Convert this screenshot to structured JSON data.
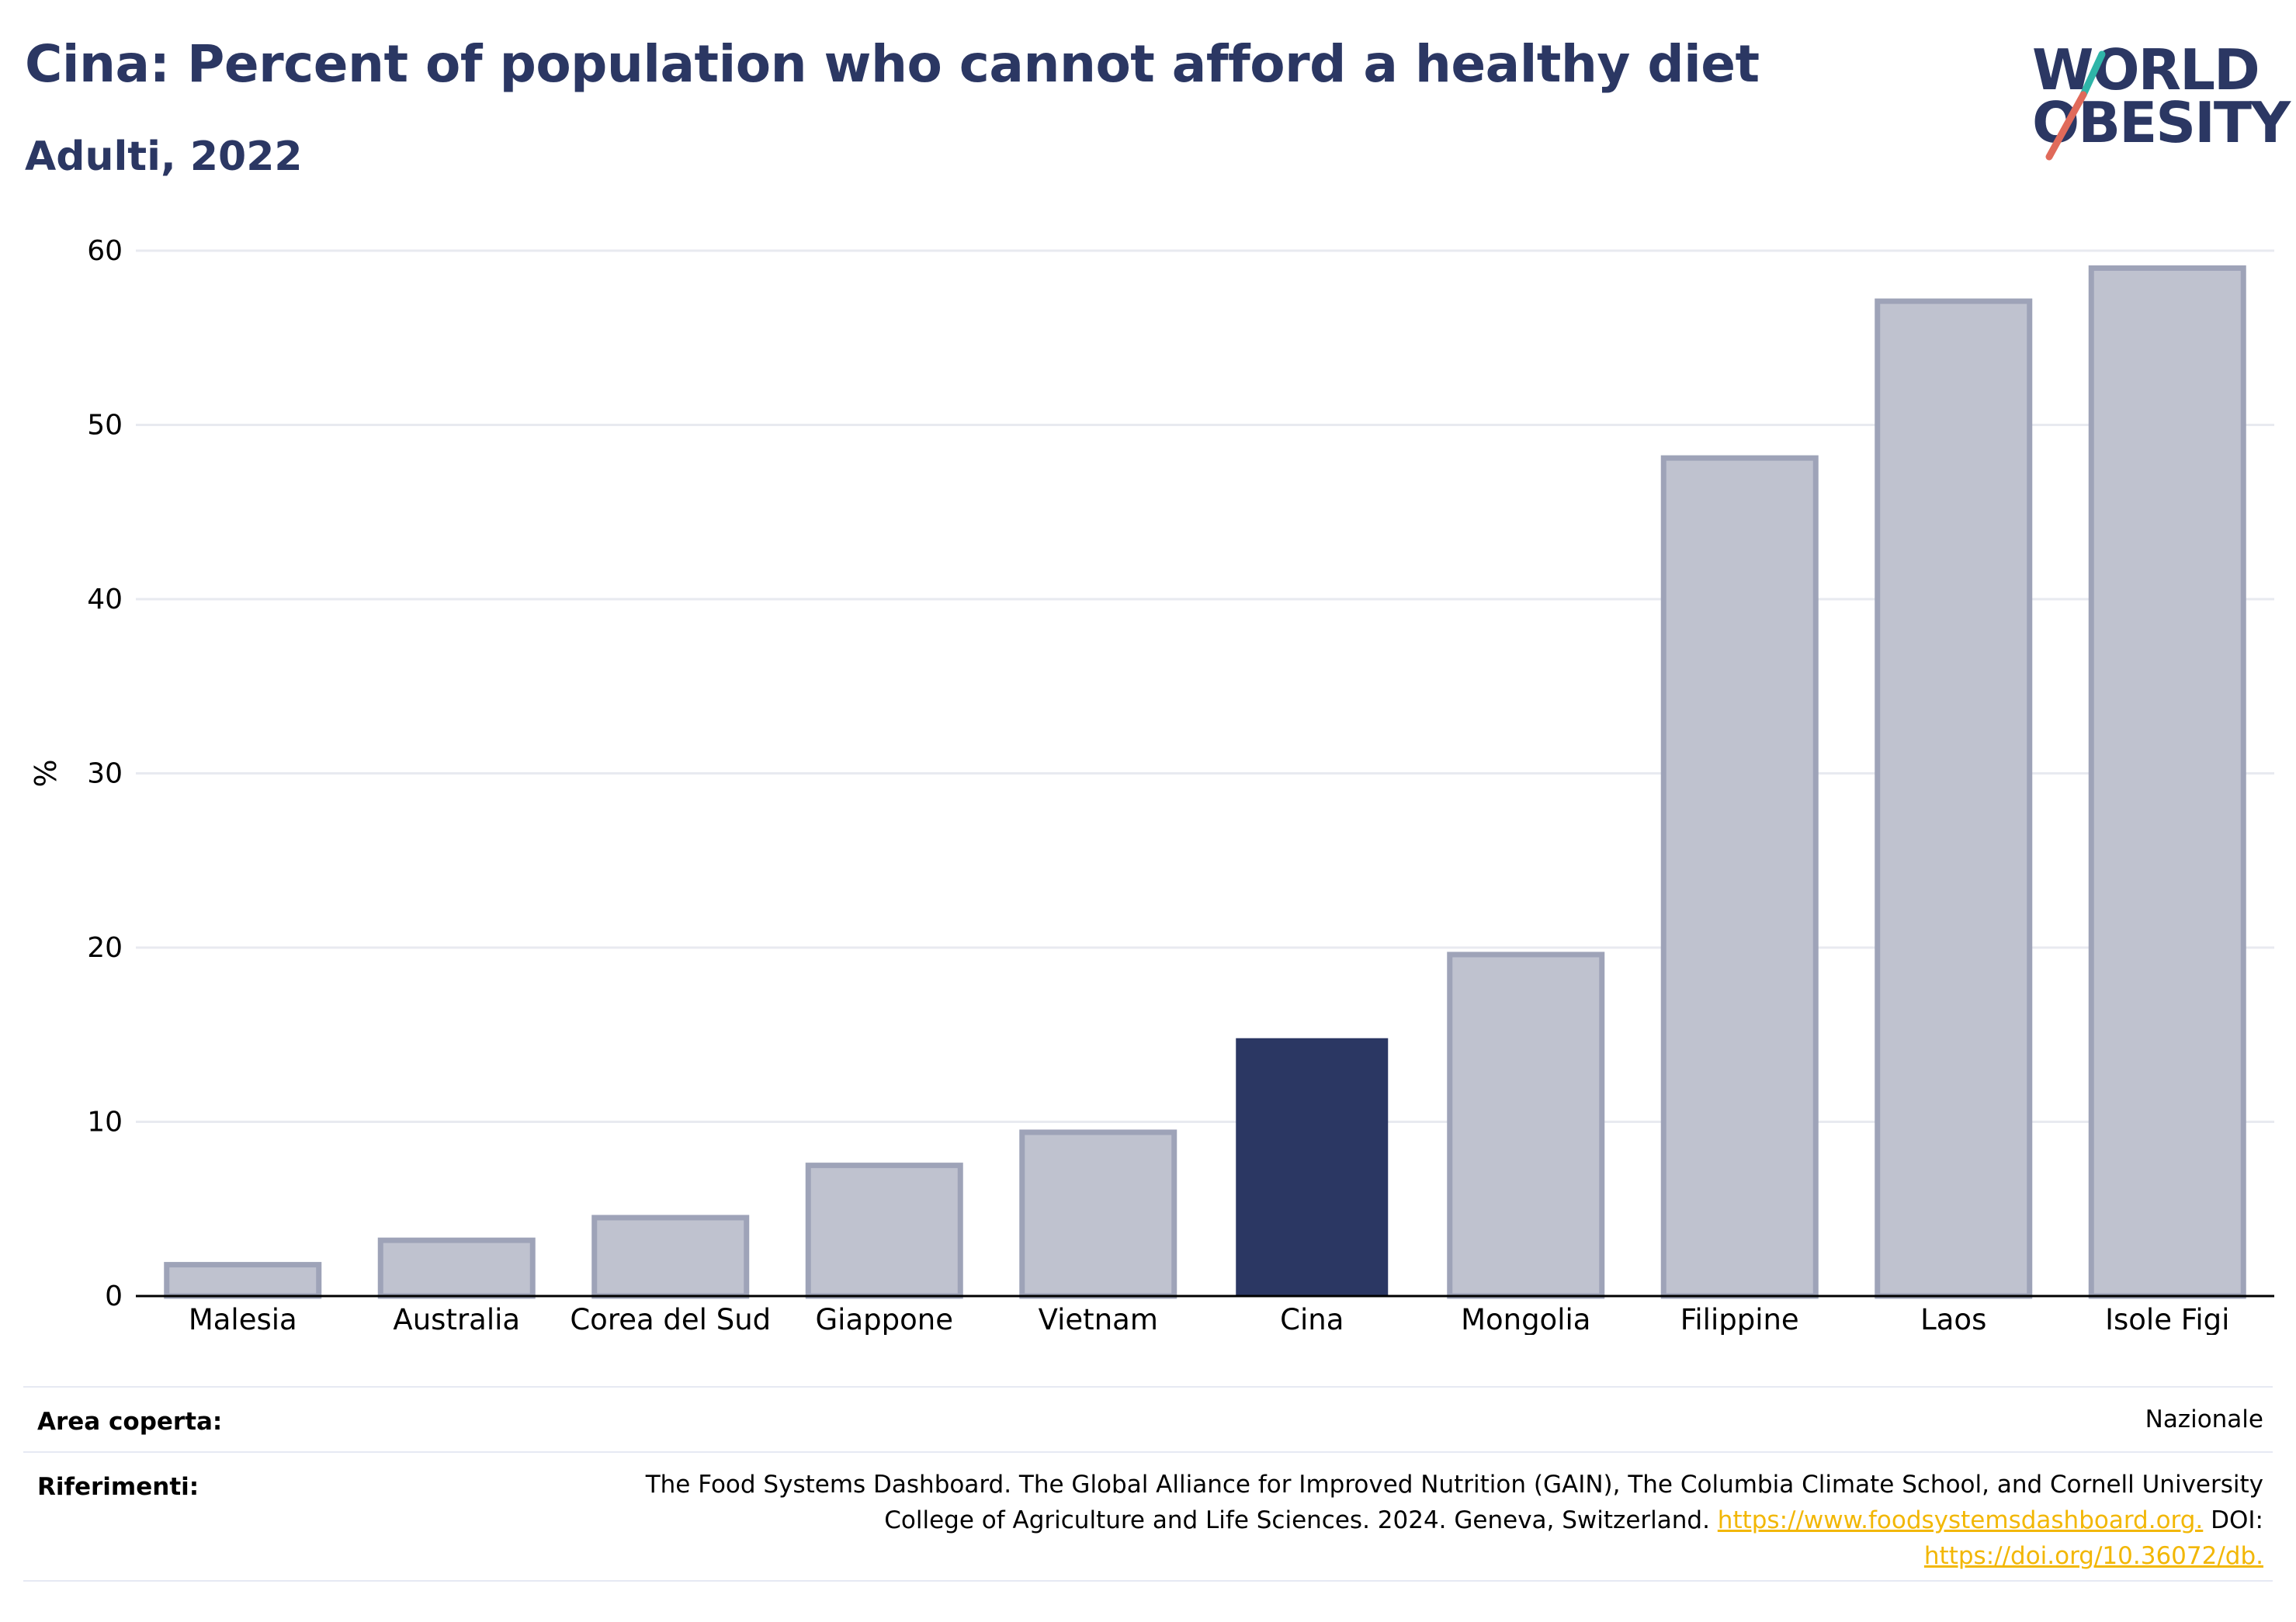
{
  "header": {
    "title": "Cina: Percent of population who cannot afford a healthy diet",
    "subtitle": "Adulti, 2022"
  },
  "logo": {
    "line1": "WORLD",
    "line2": "OBESITY",
    "colors": {
      "text": "#2b3763",
      "slash_top": "#2fb5a8",
      "slash_bottom": "#e06a5a"
    }
  },
  "chart_data": {
    "type": "bar",
    "title": "",
    "xlabel": "",
    "ylabel": "%",
    "ylim": [
      0,
      60
    ],
    "yticks": [
      0,
      10,
      20,
      30,
      40,
      50,
      60
    ],
    "grid": true,
    "categories": [
      "Malesia",
      "Australia",
      "Corea del Sud",
      "Giappone",
      "Vietnam",
      "Cina",
      "Mongolia",
      "Filippine",
      "Laos",
      "Isole Figi"
    ],
    "values": [
      1.8,
      3.2,
      4.5,
      7.5,
      9.4,
      14.8,
      19.6,
      48.1,
      57.1,
      59.0
    ],
    "highlight": "Cina",
    "colors": {
      "highlight": "#2b3763",
      "other_fill": "#bfc2cf",
      "other_stroke": "#9ea3b8",
      "grid": "#e8eaf0",
      "axis": "#000000"
    }
  },
  "footer": {
    "area_label": "Area coperta:",
    "area_value": "Nazionale",
    "ref_label": "Riferimenti:",
    "ref_line1": "The Food Systems Dashboard. The Global Alliance for Improved Nutrition (GAIN), The Columbia Climate School, and Cornell University",
    "ref_line2_text": "College of Agriculture and Life Sciences. 2024. Geneva, Switzerland.",
    "ref_link1": "https://www.foodsystemsdashboard.org.",
    "ref_doi": "DOI:",
    "ref_link2": "https://doi.org/10.36072/db."
  }
}
